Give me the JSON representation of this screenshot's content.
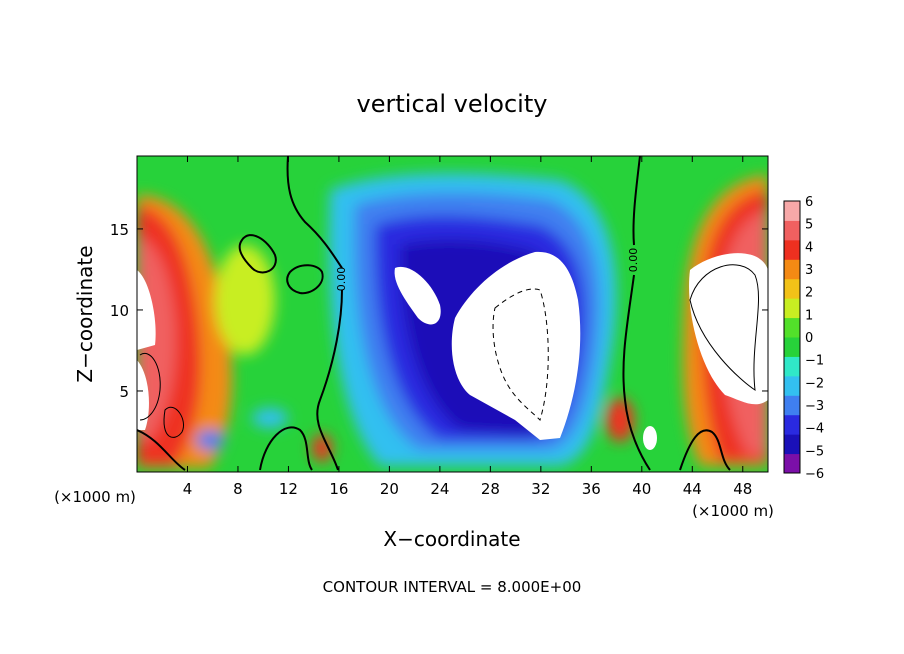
{
  "chart_data": {
    "type": "heatmap",
    "title": "vertical velocity",
    "xlabel": "X−coordinate",
    "ylabel": "Z−coordinate",
    "x_unit_left": "(×1000 m)",
    "x_unit_right": "(×1000 m)",
    "footer": "CONTOUR INTERVAL = 8.000E+00",
    "xlim": [
      0,
      50
    ],
    "ylim": [
      0,
      19.5
    ],
    "x_ticks": [
      4,
      8,
      12,
      16,
      20,
      24,
      28,
      32,
      36,
      40,
      44,
      48
    ],
    "y_ticks": [
      5,
      10,
      15
    ],
    "colorbar": {
      "levels": [
        -6,
        -5,
        -4,
        -3,
        -2,
        -1,
        0,
        1,
        2,
        3,
        4,
        5,
        6
      ],
      "labels": [
        "6",
        "5",
        "4",
        "3",
        "2",
        "1",
        "0",
        "−1",
        "−2",
        "−3",
        "−4",
        "−5",
        "−6"
      ],
      "colors": [
        "#7b0fa8",
        "#1a10b8",
        "#2a2ae0",
        "#3f7ff0",
        "#33c0f0",
        "#30e8c8",
        "#27d23a",
        "#52e02a",
        "#c8ee22",
        "#f2c218",
        "#f48a14",
        "#ee3020",
        "#f06060",
        "#f7a8a8"
      ]
    },
    "contour_labels": [
      "0.00",
      "0.00"
    ]
  }
}
